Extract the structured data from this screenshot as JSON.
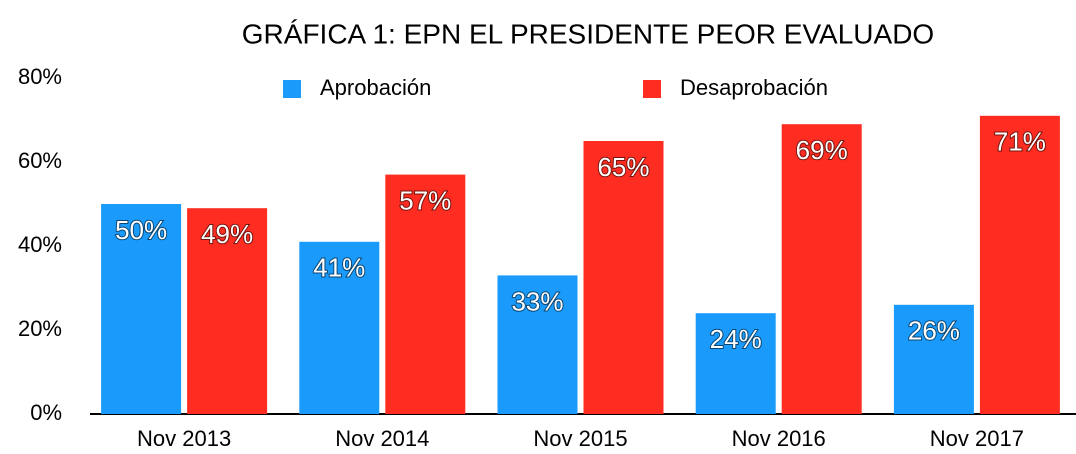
{
  "chart_data": {
    "type": "bar",
    "title": "GRÁFICA 1: EPN EL PRESIDENTE PEOR EVALUADO",
    "categories": [
      "Nov 2013",
      "Nov 2014",
      "Nov 2015",
      "Nov 2016",
      "Nov 2017"
    ],
    "series": [
      {
        "name": "Aprobación",
        "color": "#1a9bfc",
        "values": [
          50,
          41,
          33,
          24,
          26
        ],
        "value_labels": [
          "50%",
          "41%",
          "33%",
          "24%",
          "26%"
        ]
      },
      {
        "name": "Desaprobación",
        "color": "#ff2d21",
        "values": [
          49,
          57,
          65,
          69,
          71
        ],
        "value_labels": [
          "49%",
          "57%",
          "65%",
          "69%",
          "71%"
        ]
      }
    ],
    "ylim": [
      0,
      80
    ],
    "yticks": [
      {
        "value": 0,
        "label": "0%"
      },
      {
        "value": 20,
        "label": "20%"
      },
      {
        "value": 40,
        "label": "40%"
      },
      {
        "value": 60,
        "label": "60%"
      },
      {
        "value": 80,
        "label": "80%"
      }
    ],
    "grid": false,
    "legend": "top"
  }
}
